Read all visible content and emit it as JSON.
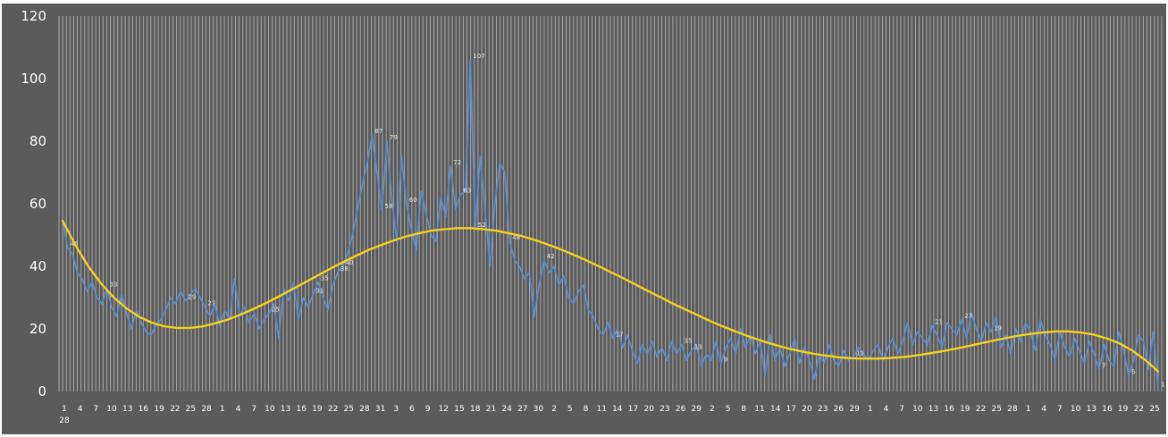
{
  "chart_data": {
    "type": "line",
    "title": "",
    "xlabel": "",
    "ylabel": "",
    "ylim": [
      0,
      120
    ],
    "yticks": [
      "0",
      "20",
      "40",
      "60",
      "80",
      "100",
      "120"
    ],
    "grid": "vertical",
    "colors": {
      "plot_background": "#5b5b5b",
      "gridline": "#c8c8c8",
      "series": "#5b8fd0",
      "trendline": "#f2d21b",
      "text": "#ffffff"
    },
    "x_tick_labels": [
      "1",
      "4",
      "7",
      "10",
      "13",
      "16",
      "19",
      "22",
      "25",
      "28",
      "1",
      "4",
      "7",
      "10",
      "13",
      "16",
      "19",
      "22",
      "25",
      "28",
      "31",
      "3",
      "6",
      "9",
      "12",
      "15",
      "18",
      "21",
      "24",
      "27",
      "30",
      "2",
      "5",
      "8",
      "11",
      "14",
      "17",
      "20",
      "23",
      "26",
      "29",
      "2",
      "5",
      "8",
      "11",
      "14",
      "17",
      "20",
      "23",
      "26",
      "29",
      "1",
      "4",
      "7",
      "10",
      "13",
      "16",
      "19",
      "22",
      "25",
      "28",
      "1",
      "4",
      "7",
      "10",
      "13",
      "16",
      "19",
      "22",
      "25"
    ],
    "x_tick_sublabel": "28",
    "series": [
      {
        "type": "line",
        "values": [
          55,
          46,
          44,
          38,
          36,
          32,
          35,
          30,
          28,
          33,
          27,
          24,
          31,
          25,
          20,
          26,
          22,
          19,
          18,
          21,
          23,
          26,
          30,
          28,
          32,
          29,
          31,
          33,
          30,
          27,
          24,
          28,
          21,
          26,
          23,
          36,
          24,
          27,
          22,
          25,
          20,
          23,
          25,
          28,
          17,
          33,
          29,
          35,
          23,
          30,
          27,
          31,
          35,
          30,
          26,
          34,
          38,
          40,
          44,
          50,
          58,
          66,
          73,
          82,
          70,
          58,
          80,
          62,
          48,
          75,
          60,
          52,
          45,
          64,
          57,
          50,
          48,
          62,
          56,
          72,
          58,
          63,
          64,
          106,
          52,
          75,
          58,
          40,
          60,
          73,
          70,
          48,
          42,
          40,
          36,
          38,
          24,
          34,
          42,
          38,
          40,
          34,
          37,
          30,
          28,
          32,
          34,
          26,
          24,
          20,
          18,
          22,
          17,
          20,
          14,
          18,
          13,
          9,
          15,
          12,
          16,
          11,
          14,
          10,
          16,
          12,
          15,
          10,
          13,
          15,
          8,
          12,
          10,
          16,
          9,
          14,
          17,
          12,
          20,
          14,
          18,
          12,
          16,
          5,
          18,
          10,
          14,
          8,
          12,
          17,
          9,
          14,
          10,
          4,
          12,
          9,
          15,
          10,
          8,
          13,
          10,
          11,
          14,
          12,
          10,
          13,
          15,
          10,
          14,
          17,
          12,
          16,
          22,
          15,
          19,
          17,
          15,
          21,
          18,
          14,
          22,
          20,
          18,
          23,
          17,
          25,
          20,
          16,
          22,
          19,
          24,
          14,
          18,
          12,
          20,
          16,
          22,
          19,
          13,
          23,
          18,
          15,
          10,
          19,
          14,
          11,
          17,
          13,
          9,
          16,
          12,
          7,
          15,
          10,
          8,
          19,
          13,
          5,
          10,
          18,
          16,
          7,
          19,
          1
        ]
      },
      {
        "type": "trendline",
        "values": [
          54.6,
          46.8,
          40.1,
          34.6,
          30.1,
          26.6,
          23.9,
          22.0,
          20.8,
          20.3,
          20.3,
          20.8,
          21.8,
          23.0,
          24.6,
          26.4,
          28.3,
          30.4,
          32.6,
          34.8,
          37.0,
          39.2,
          41.3,
          43.3,
          45.2,
          46.8,
          48.3,
          49.6,
          50.6,
          51.4,
          51.9,
          52.2,
          52.2,
          51.9,
          51.4,
          50.6,
          49.7,
          48.5,
          47.1,
          45.6,
          43.9,
          42.1,
          40.2,
          38.2,
          36.2,
          34.1,
          32.0,
          30.0,
          27.9,
          26.0,
          24.1,
          22.2,
          20.5,
          18.9,
          17.4,
          16.0,
          14.8,
          13.7,
          12.8,
          12.0,
          11.4,
          10.9,
          10.6,
          10.5,
          10.5,
          10.7,
          11.0,
          11.5,
          12.1,
          12.8,
          13.6,
          14.4,
          15.3,
          16.2,
          17.0,
          17.8,
          18.4,
          18.9,
          19.2,
          19.2,
          18.8,
          18.1,
          16.9,
          15.3,
          13.0,
          10.0,
          6.4
        ]
      }
    ],
    "data_labels": [
      "107",
      "87",
      "79",
      "72",
      "63",
      "60",
      "58",
      "52",
      "48",
      "46",
      "42",
      "40",
      "38",
      "35",
      "33",
      "31",
      "29",
      "27",
      "25",
      "23",
      "21",
      "19",
      "17",
      "15",
      "13",
      "11",
      "9",
      "7",
      "5",
      "1"
    ]
  }
}
